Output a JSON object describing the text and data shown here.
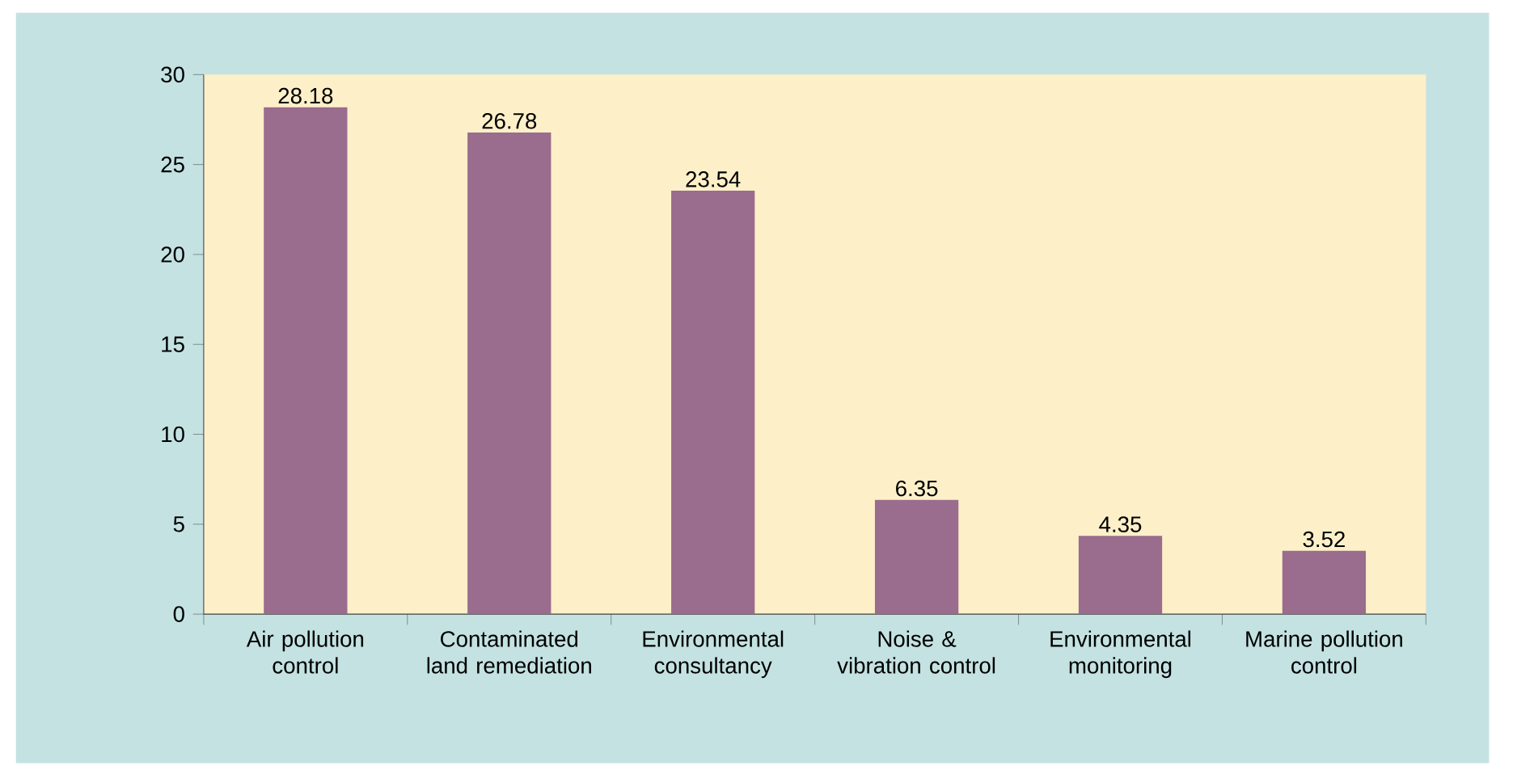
{
  "chart_data": {
    "type": "bar",
    "categories": [
      "Air pollution control",
      "Contaminated land remediation",
      "Environmental consultancy",
      "Noise & vibration control",
      "Environmental monitoring",
      "Marine pollution control"
    ],
    "values": [
      28.18,
      26.78,
      23.54,
      6.35,
      4.35,
      3.52
    ],
    "color": "#9a6c8d",
    "ylim": [
      0,
      30
    ],
    "yticks": [
      0,
      5,
      10,
      15,
      20,
      25,
      30
    ],
    "data_labels": true
  }
}
